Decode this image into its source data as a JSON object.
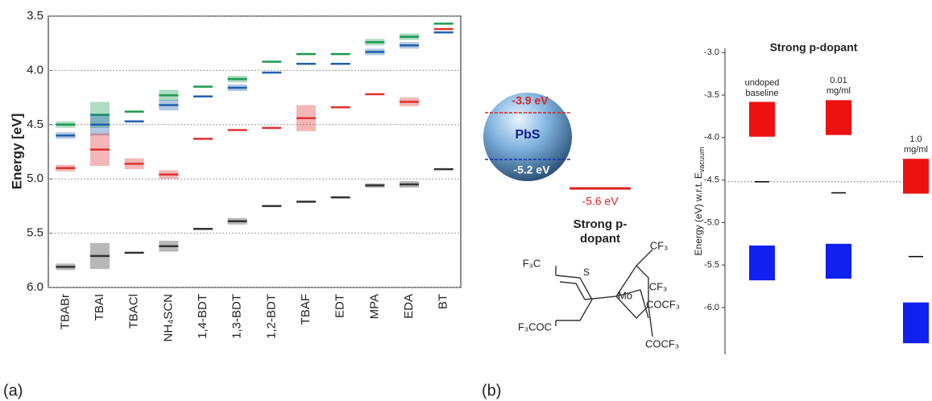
{
  "chart_data": [
    {
      "type": "level",
      "y_label": "Energy [eV]",
      "categories": [
        "TBABr",
        "TBAI",
        "TBACl",
        "NH₄SCN",
        "1,4-BDT",
        "1,3-BDT",
        "1,2-BDT",
        "TBAF",
        "EDT",
        "MPA",
        "EDA",
        "BT"
      ],
      "ylim": [
        3.5,
        6.0
      ],
      "yticks": [
        3.5,
        {
          "value": 4.0,
          "label": "4.0"
        },
        4.5,
        {
          "value": 5.0,
          "label": "5.0"
        },
        5.5,
        {
          "value": 6.0,
          "label": "6.0"
        }
      ],
      "grid": true,
      "series": [
        {
          "color": "#1a9a50",
          "values": [
            4.5,
            4.41,
            4.38,
            4.23,
            4.15,
            4.08,
            3.92,
            3.85,
            3.85,
            3.74,
            3.69,
            3.57
          ],
          "errors": [
            0.03,
            0.12,
            null,
            0.05,
            null,
            0.03,
            null,
            null,
            null,
            0.03,
            0.03,
            null
          ]
        },
        {
          "color": "#2060b0",
          "values": [
            4.6,
            4.5,
            4.47,
            4.32,
            4.24,
            4.16,
            4.02,
            3.94,
            3.94,
            3.83,
            3.77,
            3.65
          ],
          "errors": [
            0.03,
            0.1,
            null,
            0.05,
            null,
            0.03,
            null,
            null,
            null,
            0.03,
            0.03,
            null
          ]
        },
        {
          "color": "#e03030",
          "values": [
            4.9,
            4.73,
            4.86,
            4.96,
            4.63,
            4.55,
            4.53,
            4.44,
            4.34,
            4.22,
            4.29,
            3.62
          ],
          "errors": [
            0.03,
            0.15,
            0.05,
            0.04,
            null,
            null,
            null,
            0.12,
            null,
            null,
            0.04,
            null
          ]
        },
        {
          "color": "#333333",
          "values": [
            5.81,
            5.71,
            5.68,
            5.62,
            5.46,
            5.39,
            5.25,
            5.21,
            5.17,
            5.06,
            5.05,
            4.91
          ],
          "errors": [
            0.03,
            0.12,
            null,
            0.05,
            null,
            0.03,
            null,
            null,
            null,
            0.02,
            0.03,
            null
          ]
        }
      ]
    },
    {
      "type": "range_bar",
      "title": "Strong p-dopant",
      "y_label": "Energy (eV) w.r.t. E",
      "y_label_sub": "vacuum",
      "categories": [
        "undoped baseline",
        "0.01 mg/ml",
        "1.0 mg/ml"
      ],
      "ylim": [
        -2.95,
        -6.55
      ],
      "yticks": [
        {
          "value": -3.0,
          "label": "-3.0"
        },
        -3.5,
        {
          "value": -4.0,
          "label": "-4.0"
        },
        -4.5,
        {
          "value": -5.0,
          "label": "-5.0"
        },
        -5.5,
        {
          "value": -6.0,
          "label": "-6.0"
        }
      ],
      "series": [
        {
          "color": "#ee1111",
          "low": [
            -3.99,
            -3.97,
            -4.66
          ],
          "high": [
            -3.58,
            -3.56,
            -4.25
          ]
        },
        {
          "color": "#1020ee",
          "low": [
            -5.68,
            -5.66,
            -6.42
          ],
          "high": [
            -5.27,
            -5.25,
            -5.94
          ]
        }
      ],
      "levels": {
        "color": "#000000",
        "values": [
          -4.52,
          -4.65,
          -5.4
        ]
      },
      "reference_line": -4.52
    }
  ],
  "diagram": {
    "cb": "-3.9 eV",
    "material": "PbS",
    "vb": "-5.2 eV",
    "dopant_level": "-5.6 eV",
    "dopant_name": "Strong p-dopant",
    "molecule": {
      "f3c": "F₃C",
      "cf3_top": "CF₃",
      "cf3_mid": "CF₃",
      "f3coc": "F₃COC",
      "cocf3_mid": "COCF₃",
      "cocf3_bottom": "COCF₃",
      "metal": "Mo",
      "s": "S"
    }
  },
  "panel_labels": [
    "(a)",
    "(b)"
  ]
}
